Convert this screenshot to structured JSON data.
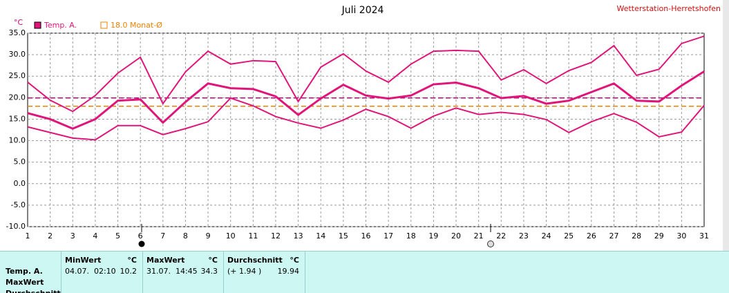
{
  "chart_data": {
    "type": "line",
    "title": "Juli 2024",
    "source": "Wetterstation-Herretshofen",
    "y_unit": "°C",
    "categories": [
      "1",
      "2",
      "3",
      "4",
      "5",
      "6",
      "7",
      "8",
      "9",
      "10",
      "11",
      "12",
      "13",
      "14",
      "15",
      "16",
      "17",
      "18",
      "19",
      "20",
      "21",
      "22",
      "23",
      "24",
      "25",
      "26",
      "27",
      "28",
      "29",
      "30",
      "31"
    ],
    "series": [
      {
        "name": "Temp. A.",
        "color": "#e0157a",
        "width": 3,
        "values": [
          16.4,
          15.0,
          12.8,
          15.0,
          19.3,
          19.6,
          14.2,
          19.0,
          23.3,
          22.2,
          22.0,
          20.3,
          16.0,
          19.8,
          23.0,
          20.5,
          19.8,
          20.5,
          23.1,
          23.5,
          22.2,
          19.9,
          20.4,
          18.6,
          19.3,
          21.3,
          23.3,
          19.3,
          19.1,
          22.8,
          26.1
        ]
      },
      {
        "color": "#e0157a",
        "width": 2,
        "values": [
          23.6,
          19.4,
          16.8,
          20.5,
          25.7,
          29.4,
          18.6,
          26.0,
          30.8,
          27.8,
          28.6,
          28.4,
          19.1,
          27.1,
          30.2,
          26.2,
          23.6,
          27.8,
          30.8,
          31.0,
          30.8,
          24.1,
          26.5,
          23.3,
          26.3,
          28.2,
          32.1,
          25.2,
          26.6,
          32.6,
          34.3
        ]
      },
      {
        "color": "#e0157a",
        "width": 2,
        "values": [
          13.2,
          11.9,
          10.6,
          10.2,
          13.5,
          13.5,
          11.4,
          12.8,
          14.4,
          19.9,
          18.1,
          15.6,
          14.1,
          12.9,
          14.8,
          17.3,
          15.6,
          12.9,
          15.7,
          17.6,
          16.1,
          16.6,
          16.1,
          14.9,
          11.9,
          14.4,
          16.3,
          14.3,
          10.9,
          12.0,
          18.2
        ]
      }
    ],
    "reference_lines": [
      {
        "value": 18.0,
        "label": "18.0 Monat-Ø",
        "color": "#f08000"
      },
      {
        "value": 19.94,
        "color": "#c0007a"
      }
    ],
    "ylim": [
      -10,
      35
    ],
    "yticks": [
      {
        "value": 35,
        "label": "35.0"
      },
      {
        "value": 30,
        "label": "30.0"
      },
      {
        "value": 25,
        "label": "25.0"
      },
      {
        "value": 20,
        "label": "20.0"
      },
      {
        "value": 15,
        "label": "15.0"
      },
      {
        "value": 10,
        "label": "10.0"
      },
      {
        "value": 5,
        "label": "5.0"
      },
      {
        "value": 0,
        "label": "0.0"
      },
      {
        "value": -5,
        "label": "-5.0"
      },
      {
        "value": -10,
        "label": "-10.0"
      }
    ],
    "grid": true
  },
  "table": {
    "row_labels": [
      "Temp. A.",
      "MaxWert",
      "Durchschnitt"
    ],
    "columns": [
      {
        "header": "MinWert",
        "unit": "°C",
        "time": "04.07.  02:10",
        "value": "10.2"
      },
      {
        "header": "MaxWert",
        "unit": "°C",
        "time": "31.07.  14:45",
        "value": "34.3"
      },
      {
        "header": "Durchschnitt",
        "unit": "°C",
        "time": "(+ 1.94 )",
        "value": "19.94"
      }
    ]
  }
}
